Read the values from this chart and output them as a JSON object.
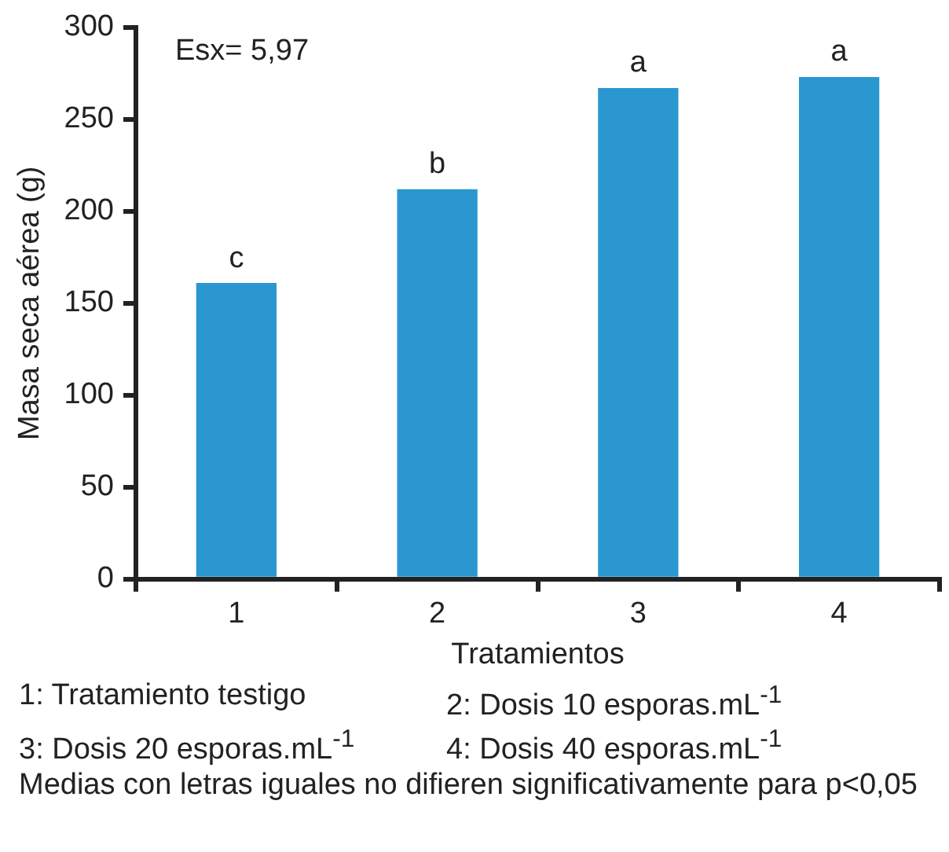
{
  "chart_data": {
    "type": "bar",
    "xlabel": "Tratamientos",
    "ylabel": "Masa seca aérea (g)",
    "categories": [
      "1",
      "2",
      "3",
      "4"
    ],
    "values": [
      161,
      212,
      267,
      273
    ],
    "color": "#2b97d0",
    "value_labels": [
      "c",
      "b",
      "a",
      "a"
    ],
    "ylim": [
      0,
      300
    ],
    "yticks": [
      0,
      50,
      100,
      150,
      200,
      250,
      300
    ],
    "grid": false,
    "legend": false,
    "annotations": [
      "Esx= 5,97",
      "1: Tratamiento testigo",
      "2: Dosis 10 esporas.mL$^{-1}$",
      "3: Dosis 20 esporas.mL$^{-1}$",
      "4: Dosis 40 esporas.mL$^{-1}$",
      "Medias con letras iguales no difieren significativamente para p<0,05"
    ]
  }
}
